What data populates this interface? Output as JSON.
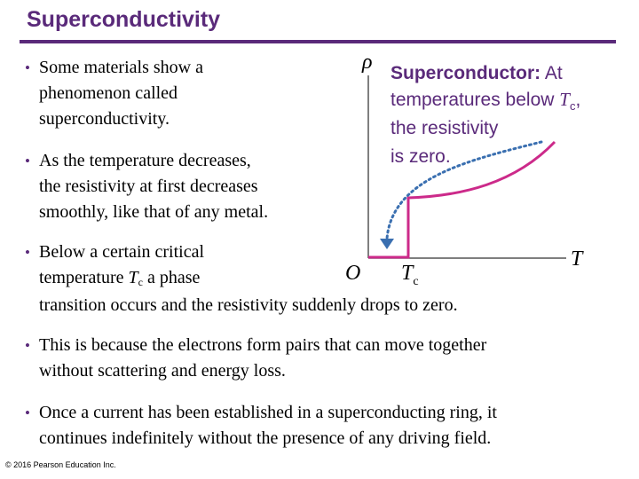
{
  "title": "Superconductivity",
  "bullets": [
    {
      "lines": [
        "Some materials show a",
        "phenomenon called",
        "superconductivity."
      ]
    },
    {
      "lines": [
        "As the temperature decreases,",
        "the resistivity at first decreases",
        "smoothly, like that of any metal."
      ]
    },
    {
      "line1": "Below a certain critical",
      "line2_pre": "temperature ",
      "tc_T": "T",
      "tc_sub": "c",
      "line2_post": " a phase",
      "line3": "transition occurs and the resistivity suddenly drops to zero."
    },
    {
      "lines": [
        "This is because the electrons form pairs that can move together",
        "without scattering and energy loss."
      ]
    },
    {
      "lines": [
        "Once a current has been established in a superconducting ring, it",
        "continues indefinitely without the presence of any driving field."
      ]
    }
  ],
  "figure": {
    "y_axis_label": "ρ",
    "x_axis_label": "T",
    "origin_label": "O",
    "tc_label_T": "T",
    "tc_label_sub": "c",
    "callout_bold": "Superconductor:",
    "callout_line1_rest": " At",
    "callout_line2_pre": "temperatures below ",
    "callout_line2_T": "T",
    "callout_line2_sub": "c",
    "callout_line2_post": ",",
    "callout_line3": "the resistivity",
    "callout_line4": "is zero."
  },
  "colors": {
    "accent": "#5a2a7a",
    "curve": "#cc2a8a",
    "arrow": "#3a6fb0"
  },
  "credit": "© 2016 Pearson Education Inc."
}
